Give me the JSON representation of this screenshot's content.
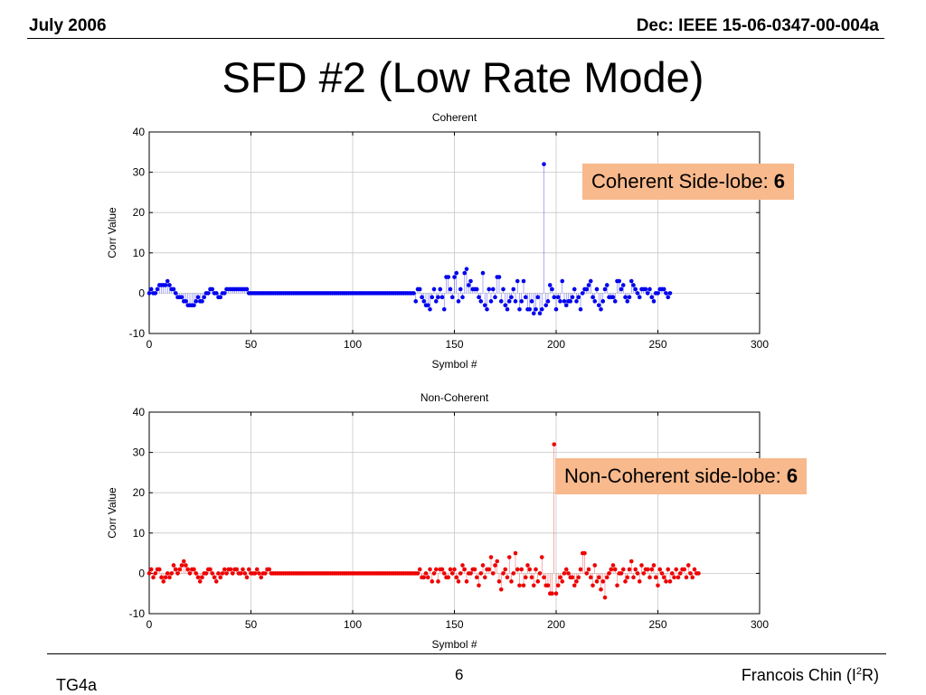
{
  "header": {
    "left": "July 2006",
    "right": "Dec: IEEE 15-06-0347-00-004a"
  },
  "slide_title": "SFD #2 (Low Rate Mode)",
  "callouts": [
    {
      "text": "Coherent Side-lobe: ",
      "value": "6"
    },
    {
      "text": "Non-Coherent side-lobe: ",
      "value": "6"
    }
  ],
  "footer": {
    "left": "TG4a",
    "page": "6",
    "author_pre": "Francois Chin (I",
    "author_sup": "2",
    "author_post": "R)"
  },
  "colors": {
    "coherent": "#0000ee",
    "non_coherent": "#ee0000",
    "callout_bg": "#f8b98c",
    "grid": "#c8c8c8"
  },
  "chart_data": [
    {
      "type": "scatter",
      "style": "stem",
      "title": "Coherent",
      "xlabel": "Symbol #",
      "ylabel": "Corr Value",
      "xlim": [
        0,
        300
      ],
      "ylim": [
        -10,
        40
      ],
      "xticks": [
        0,
        50,
        100,
        150,
        200,
        250,
        300
      ],
      "yticks": [
        -10,
        0,
        10,
        20,
        30,
        40
      ],
      "grid": true,
      "color": "#0000ee",
      "x_start": 0,
      "y": [
        0,
        1,
        0,
        0,
        1,
        2,
        2,
        2,
        2,
        3,
        2,
        1,
        1,
        0,
        -1,
        -1,
        -1,
        -2,
        -2,
        -3,
        -3,
        -3,
        -3,
        -2,
        -1,
        -2,
        -2,
        -1,
        0,
        0,
        1,
        1,
        0,
        0,
        -1,
        -1,
        0,
        0,
        1,
        1,
        1,
        1,
        1,
        1,
        1,
        1,
        1,
        1,
        1,
        0,
        0,
        0,
        0,
        0,
        0,
        0,
        0,
        0,
        0,
        0,
        0,
        0,
        0,
        0,
        0,
        0,
        0,
        0,
        0,
        0,
        0,
        0,
        0,
        0,
        0,
        0,
        0,
        0,
        0,
        0,
        0,
        0,
        0,
        0,
        0,
        0,
        0,
        0,
        0,
        0,
        0,
        0,
        0,
        0,
        0,
        0,
        0,
        0,
        0,
        0,
        0,
        0,
        0,
        0,
        0,
        0,
        0,
        0,
        0,
        0,
        0,
        0,
        0,
        0,
        0,
        0,
        0,
        0,
        0,
        0,
        0,
        0,
        0,
        0,
        0,
        0,
        0,
        0,
        0,
        0,
        0,
        -2,
        1,
        1,
        -1,
        -2,
        -3,
        -3,
        -4,
        -1,
        1,
        -2,
        -1,
        1,
        -1,
        -4,
        4,
        4,
        1,
        -1,
        4,
        5,
        -2,
        1,
        -1,
        5,
        6,
        2,
        3,
        1,
        1,
        1,
        -1,
        -2,
        5,
        -3,
        -4,
        1,
        -2,
        1,
        -1,
        4,
        4,
        -2,
        1,
        -3,
        -4,
        -2,
        -1,
        1,
        -2,
        3,
        -4,
        -2,
        3,
        -1,
        -4,
        -4,
        -2,
        -5,
        -4,
        -1,
        -5,
        -4,
        32,
        -3,
        -2,
        2,
        1,
        -1,
        -4,
        -1,
        -2,
        3,
        -2,
        -3,
        -2,
        -2,
        -1,
        1,
        -2,
        -1,
        -4,
        0,
        1,
        1,
        2,
        3,
        -1,
        -2,
        1,
        -3,
        -4,
        -2,
        1,
        2,
        -1,
        -1,
        -1,
        -2,
        3,
        3,
        1,
        2,
        -1,
        -2,
        -1,
        3,
        2,
        1,
        0,
        -1,
        1,
        1,
        1,
        0,
        1,
        -1,
        -2,
        0,
        0,
        1,
        1,
        1,
        0,
        -1,
        0
      ]
    },
    {
      "type": "scatter",
      "style": "stem",
      "title": "Non-Coherent",
      "xlabel": "Symbol #",
      "ylabel": "Corr Value",
      "xlim": [
        0,
        300
      ],
      "ylim": [
        -10,
        40
      ],
      "xticks": [
        0,
        50,
        100,
        150,
        200,
        250,
        300
      ],
      "yticks": [
        -10,
        0,
        10,
        20,
        30,
        40
      ],
      "grid": true,
      "color": "#ee0000",
      "x_start": 0,
      "y": [
        0,
        1,
        -1,
        0,
        1,
        1,
        -1,
        -2,
        -1,
        0,
        -1,
        0,
        2,
        1,
        0,
        1,
        2,
        3,
        2,
        1,
        0,
        1,
        1,
        0,
        -1,
        -2,
        -1,
        0,
        0,
        1,
        1,
        0,
        -1,
        -2,
        0,
        -1,
        0,
        1,
        0,
        1,
        1,
        0,
        1,
        1,
        0,
        0,
        1,
        0,
        -1,
        1,
        0,
        0,
        0,
        1,
        0,
        -1,
        0,
        0,
        1,
        1,
        0,
        0,
        0,
        0,
        0,
        0,
        0,
        0,
        0,
        0,
        0,
        0,
        0,
        0,
        0,
        0,
        0,
        0,
        0,
        0,
        0,
        0,
        0,
        0,
        0,
        0,
        0,
        0,
        0,
        0,
        0,
        0,
        0,
        0,
        0,
        0,
        0,
        0,
        0,
        0,
        0,
        0,
        0,
        0,
        0,
        0,
        0,
        0,
        0,
        0,
        0,
        0,
        0,
        0,
        0,
        0,
        0,
        0,
        0,
        0,
        0,
        0,
        0,
        0,
        0,
        0,
        0,
        0,
        0,
        0,
        0,
        0,
        0,
        1,
        -1,
        -1,
        0,
        -1,
        1,
        -2,
        0,
        1,
        -2,
        1,
        1,
        0,
        -1,
        -1,
        1,
        0,
        1,
        -1,
        -2,
        0,
        2,
        1,
        -2,
        0,
        0,
        1,
        1,
        -1,
        -3,
        0,
        2,
        -1,
        1,
        1,
        4,
        0,
        2,
        3,
        -2,
        -4,
        0,
        1,
        -1,
        4,
        -2,
        0,
        5,
        1,
        -3,
        1,
        -3,
        -1,
        2,
        1,
        -1,
        -3,
        1,
        -2,
        0,
        4,
        -1,
        -3,
        -3,
        -5,
        -5,
        32,
        -5,
        -3,
        -1,
        -2,
        0,
        1,
        0,
        -1,
        -1,
        -3,
        -2,
        -1,
        1,
        5,
        5,
        0,
        1,
        -1,
        -3,
        2,
        -2,
        -1,
        -4,
        -2,
        -6,
        -1,
        0,
        1,
        2,
        1,
        -3,
        0,
        0,
        1,
        -2,
        -1,
        1,
        3,
        -1,
        1,
        0,
        -2,
        2,
        0,
        1,
        1,
        -1,
        1,
        2,
        -1,
        -3,
        1,
        0,
        -1,
        -2,
        1,
        -2,
        0,
        -1,
        1,
        -1,
        0,
        1,
        1,
        -1,
        2,
        0,
        -1,
        1,
        0,
        0
      ]
    }
  ]
}
